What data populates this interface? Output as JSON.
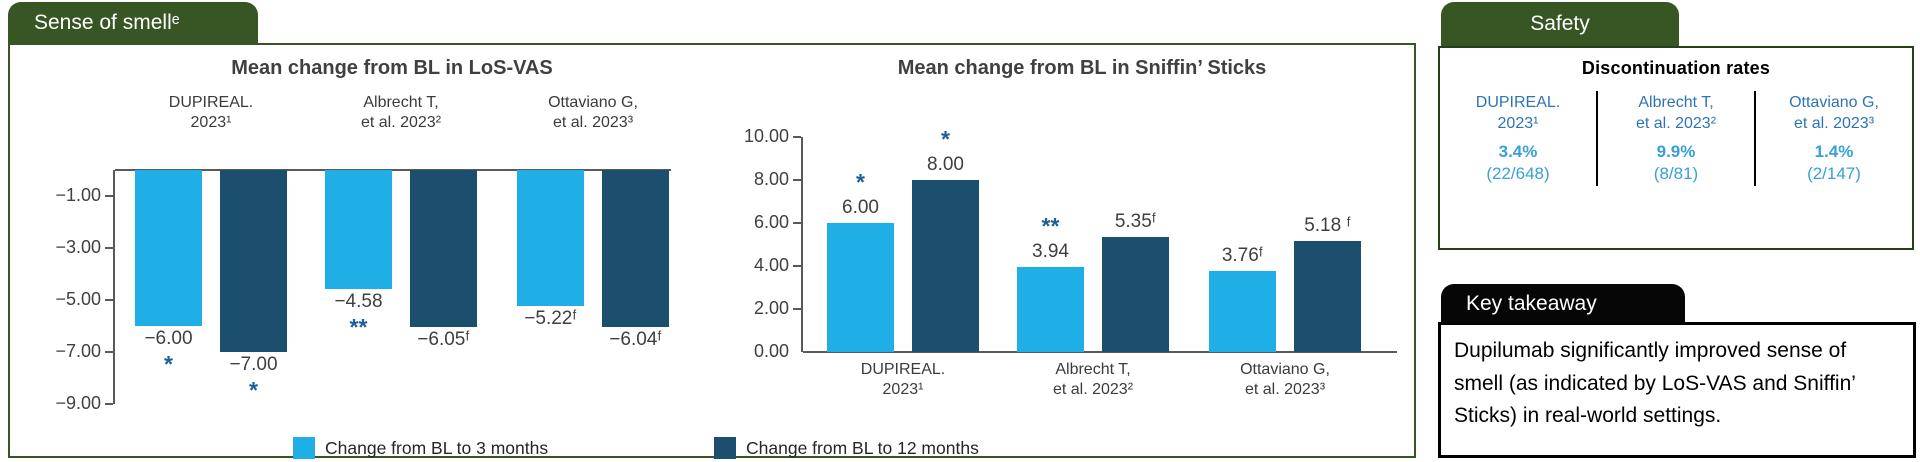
{
  "colors": {
    "green": "#375623",
    "light_blue": "#20aee6",
    "dark_blue": "#1c4f6e",
    "marker_blue": "#1e5f96",
    "study_blue": "#2e74b5",
    "value_blue": "#38a0d8"
  },
  "main_panel": {
    "tab_label": "Sense of smellᵉ"
  },
  "legend": {
    "items": [
      {
        "label": "Change from BL to 3 months",
        "color": "#20aee6"
      },
      {
        "label": "Change from BL to 12 months",
        "color": "#1c4f6e"
      }
    ]
  },
  "chart_data": [
    {
      "type": "bar",
      "title": "Mean change from BL in LoS-VAS",
      "orientation": "hanging",
      "categories": [
        [
          "DUPIREAL.",
          "2023¹"
        ],
        [
          "Albrecht T,",
          "et al. 2023²"
        ],
        [
          "Ottaviano G,",
          "et al. 2023³"
        ]
      ],
      "series": [
        {
          "name": "Change from BL to 3 months",
          "values": [
            -6.0,
            -4.58,
            -5.22
          ],
          "labels": [
            "−6.00",
            "−4.58",
            "−5.22ᶠ"
          ],
          "markers": [
            "*",
            "**",
            ""
          ]
        },
        {
          "name": "Change from BL to 12 months",
          "values": [
            -7.0,
            -6.05,
            -6.04
          ],
          "labels": [
            "−7.00",
            "−6.05ᶠ",
            "−6.04ᶠ"
          ],
          "markers": [
            "*",
            "",
            ""
          ]
        }
      ],
      "ylim": [
        0,
        -9
      ],
      "yticks": [
        {
          "v": -1,
          "label": "−1.00"
        },
        {
          "v": -3,
          "label": "−3.00"
        },
        {
          "v": -5,
          "label": "−5.00"
        },
        {
          "v": -7,
          "label": "−7.00"
        },
        {
          "v": -9,
          "label": "−9.00"
        }
      ],
      "legend_position": "bottom",
      "grid": false
    },
    {
      "type": "bar",
      "title": "Mean change from BL in Sniffin’ Sticks",
      "orientation": "rising",
      "categories": [
        [
          "DUPIREAL.",
          "2023¹"
        ],
        [
          "Albrecht T,",
          "et al. 2023²"
        ],
        [
          "Ottaviano G,",
          "et al. 2023³"
        ]
      ],
      "series": [
        {
          "name": "Change from BL to 3 months",
          "values": [
            6.0,
            3.94,
            3.76
          ],
          "labels": [
            "6.00",
            "3.94",
            "3.76ᶠ"
          ],
          "markers": [
            "*",
            "**",
            ""
          ]
        },
        {
          "name": "Change from BL to 12 months",
          "values": [
            8.0,
            5.35,
            5.18
          ],
          "labels": [
            "8.00",
            "5.35ᶠ",
            "5.18 ᶠ"
          ],
          "markers": [
            "*",
            "",
            ""
          ]
        }
      ],
      "ylim": [
        0,
        10
      ],
      "yticks": [
        {
          "v": 10,
          "label": "10.00"
        },
        {
          "v": 8,
          "label": "8.00"
        },
        {
          "v": 6,
          "label": "6.00"
        },
        {
          "v": 4,
          "label": "4.00"
        },
        {
          "v": 2,
          "label": "2.00"
        },
        {
          "v": 0,
          "label": "0.00"
        }
      ],
      "legend_position": "bottom",
      "grid": false
    }
  ],
  "safety": {
    "tab_label": "Safety",
    "header": "Discontinuation rates",
    "columns": [
      {
        "study": [
          "DUPIREAL.",
          "2023¹"
        ],
        "rate": "3.4%",
        "count": "(22/648)"
      },
      {
        "study": [
          "Albrecht T,",
          "et al. 2023²"
        ],
        "rate": "9.9%",
        "count": "(8/81)"
      },
      {
        "study": [
          "Ottaviano G,",
          "et al. 2023³"
        ],
        "rate": "1.4%",
        "count": "(2/147)"
      }
    ]
  },
  "key_takeaway": {
    "tab_label": "Key takeaway",
    "text": "Dupilumab significantly improved sense of smell (as indicated by LoS-VAS and Sniffin’ Sticks) in real-world settings."
  }
}
